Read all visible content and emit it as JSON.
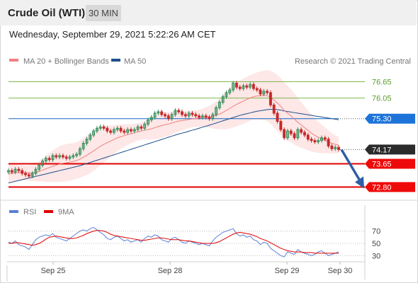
{
  "header": {
    "title": "Crude Oil (WTI)",
    "timeframe": "30 MIN"
  },
  "timestamp": "Wednesday, September 29, 2021 5:22:26 AM CET",
  "legend": {
    "ma20": "MA 20 + Bollinger Bands",
    "ma50": "MA 50",
    "credit": "Research © 2021 Trading Central"
  },
  "rsi_legend": {
    "rsi": "RSI",
    "ma": "9MA"
  },
  "colors": {
    "ma20": "#f08080",
    "ma50": "#1f4e8c",
    "band": "#fde3e3",
    "up": "#2e8b57",
    "down": "#c62828",
    "resistance": "#7fb84a",
    "support": "#e00000",
    "pivot": "#1565c0",
    "rsi": "#5b7fd6",
    "rsi_ma": "#e00000"
  },
  "chart_data": {
    "type": "candlestick",
    "ylim": [
      72.5,
      77.05
    ],
    "x_ticks": [
      "Sep 25",
      "Sep 28",
      "Sep 29",
      "Sep 30"
    ],
    "levels": [
      {
        "label": "76.65",
        "value": 76.65,
        "kind": "resistance"
      },
      {
        "label": "76.05",
        "value": 76.05,
        "kind": "resistance"
      },
      {
        "label": "75.30",
        "value": 75.3,
        "kind": "pivot"
      },
      {
        "label": "74.17",
        "value": 74.17,
        "kind": "last"
      },
      {
        "label": "73.65",
        "value": 73.65,
        "kind": "support"
      },
      {
        "label": "72.80",
        "value": 72.8,
        "kind": "support"
      }
    ],
    "close": [
      73.4,
      73.35,
      73.45,
      73.4,
      73.3,
      73.25,
      73.2,
      73.3,
      73.45,
      73.6,
      73.75,
      73.85,
      73.8,
      73.95,
      73.9,
      73.95,
      73.9,
      73.85,
      73.9,
      73.95,
      74.0,
      74.2,
      74.4,
      74.55,
      74.7,
      74.85,
      74.95,
      75.0,
      74.95,
      74.85,
      74.8,
      74.9,
      74.95,
      74.85,
      74.8,
      74.9,
      74.85,
      74.9,
      75.0,
      74.95,
      75.1,
      75.25,
      75.35,
      75.5,
      75.55,
      75.45,
      75.4,
      75.3,
      75.45,
      75.6,
      75.55,
      75.45,
      75.4,
      75.5,
      75.45,
      75.4,
      75.35,
      75.4,
      75.35,
      75.3,
      75.45,
      75.7,
      75.9,
      76.1,
      76.25,
      76.35,
      76.6,
      76.45,
      76.4,
      76.5,
      76.45,
      76.55,
      76.4,
      76.35,
      76.2,
      76.3,
      76.25,
      75.8,
      75.5,
      75.2,
      74.9,
      74.6,
      74.85,
      74.75,
      74.6,
      74.9,
      74.8,
      74.7,
      74.55,
      74.5,
      74.45,
      74.5,
      74.6,
      74.55,
      74.3,
      74.2,
      74.25,
      74.17
    ],
    "ma20": [
      73.28,
      73.3,
      73.32,
      73.33,
      73.33,
      73.32,
      73.31,
      73.32,
      73.34,
      73.37,
      73.42,
      73.47,
      73.51,
      73.56,
      73.6,
      73.64,
      73.67,
      73.69,
      73.71,
      73.74,
      73.77,
      73.82,
      73.89,
      73.96,
      74.04,
      74.12,
      74.21,
      74.29,
      74.36,
      74.42,
      74.48,
      74.54,
      74.6,
      74.64,
      74.68,
      74.72,
      74.75,
      74.78,
      74.82,
      74.85,
      74.88,
      74.9,
      74.93,
      74.97,
      75.01,
      75.05,
      75.08,
      75.1,
      75.14,
      75.18,
      75.21,
      75.23,
      75.25,
      75.27,
      75.29,
      75.3,
      75.32,
      75.34,
      75.36,
      75.37,
      75.39,
      75.42,
      75.47,
      75.53,
      75.6,
      75.67,
      75.75,
      75.82,
      75.88,
      75.94,
      76.0,
      76.06,
      76.1,
      76.13,
      76.14,
      76.15,
      76.14,
      76.08,
      75.98,
      75.87,
      75.75,
      75.6,
      75.5,
      75.4,
      75.28,
      75.17,
      75.07,
      74.97,
      74.87,
      74.77,
      74.69,
      74.62,
      74.56,
      74.51,
      74.45,
      74.4,
      74.36,
      74.33
    ],
    "ma50": [
      72.95,
      72.98,
      73.01,
      73.04,
      73.07,
      73.1,
      73.13,
      73.16,
      73.19,
      73.22,
      73.25,
      73.28,
      73.31,
      73.34,
      73.37,
      73.4,
      73.43,
      73.46,
      73.49,
      73.52,
      73.55,
      73.58,
      73.62,
      73.66,
      73.7,
      73.74,
      73.78,
      73.82,
      73.86,
      73.9,
      73.94,
      73.98,
      74.02,
      74.06,
      74.1,
      74.14,
      74.18,
      74.22,
      74.26,
      74.3,
      74.34,
      74.38,
      74.42,
      74.46,
      74.5,
      74.54,
      74.58,
      74.62,
      74.66,
      74.7,
      74.74,
      74.77,
      74.8,
      74.84,
      74.88,
      74.91,
      74.95,
      74.99,
      75.02,
      75.06,
      75.1,
      75.14,
      75.18,
      75.22,
      75.26,
      75.3,
      75.34,
      75.38,
      75.42,
      75.45,
      75.48,
      75.51,
      75.54,
      75.57,
      75.59,
      75.61,
      75.63,
      75.64,
      75.64,
      75.63,
      75.61,
      75.58,
      75.56,
      75.54,
      75.52,
      75.5,
      75.48,
      75.46,
      75.44,
      75.42,
      75.4,
      75.38,
      75.36,
      75.34,
      75.32,
      75.3,
      75.28,
      75.26
    ],
    "bb_width": [
      0.35,
      0.33,
      0.3,
      0.28,
      0.27,
      0.27,
      0.28,
      0.3,
      0.33,
      0.37,
      0.42,
      0.48,
      0.53,
      0.58,
      0.62,
      0.65,
      0.67,
      0.68,
      0.68,
      0.67,
      0.67,
      0.68,
      0.7,
      0.72,
      0.73,
      0.73,
      0.72,
      0.7,
      0.66,
      0.62,
      0.57,
      0.52,
      0.48,
      0.44,
      0.41,
      0.38,
      0.35,
      0.33,
      0.32,
      0.32,
      0.33,
      0.36,
      0.39,
      0.42,
      0.44,
      0.45,
      0.45,
      0.44,
      0.42,
      0.4,
      0.38,
      0.35,
      0.33,
      0.31,
      0.3,
      0.3,
      0.31,
      0.33,
      0.36,
      0.4,
      0.45,
      0.5,
      0.56,
      0.62,
      0.68,
      0.73,
      0.77,
      0.8,
      0.82,
      0.83,
      0.83,
      0.83,
      0.84,
      0.86,
      0.88,
      0.9,
      0.93,
      0.97,
      1.0,
      1.02,
      1.03,
      1.02,
      1.0,
      0.97,
      0.93,
      0.88,
      0.83,
      0.78,
      0.73,
      0.68,
      0.62,
      0.57,
      0.52,
      0.47,
      0.42,
      0.37,
      0.33,
      0.3
    ],
    "projection": {
      "from": 74.17,
      "to": 72.8
    },
    "rsi": {
      "ylim": [
        20,
        80
      ],
      "ticks": [
        70,
        50,
        30
      ],
      "rsi_values": [
        52,
        50,
        54,
        48,
        46,
        44,
        40,
        48,
        56,
        60,
        62,
        64,
        62,
        66,
        60,
        58,
        56,
        54,
        58,
        62,
        66,
        70,
        72,
        70,
        74,
        76,
        72,
        68,
        64,
        58,
        56,
        60,
        62,
        58,
        54,
        56,
        52,
        54,
        56,
        52,
        58,
        62,
        60,
        64,
        62,
        56,
        54,
        52,
        58,
        60,
        56,
        52,
        50,
        54,
        52,
        50,
        48,
        50,
        48,
        46,
        54,
        60,
        64,
        68,
        70,
        72,
        74,
        66,
        62,
        64,
        60,
        62,
        56,
        54,
        48,
        52,
        50,
        42,
        38,
        34,
        30,
        28,
        36,
        34,
        32,
        40,
        36,
        34,
        32,
        30,
        32,
        36,
        38,
        34,
        30,
        32,
        34,
        36
      ],
      "ma_values": [
        50,
        50,
        51,
        51,
        50,
        49,
        48,
        47,
        48,
        50,
        53,
        57,
        60,
        61,
        62,
        61,
        60,
        59,
        58,
        58,
        59,
        61,
        63,
        66,
        68,
        70,
        71,
        71,
        70,
        68,
        65,
        63,
        62,
        61,
        60,
        59,
        58,
        57,
        56,
        55,
        55,
        56,
        57,
        58,
        59,
        59,
        58,
        57,
        56,
        56,
        56,
        55,
        54,
        54,
        53,
        52,
        51,
        50,
        50,
        50,
        50,
        51,
        53,
        56,
        59,
        62,
        65,
        67,
        68,
        67,
        66,
        65,
        63,
        61,
        58,
        56,
        54,
        51,
        48,
        45,
        42,
        40,
        38,
        37,
        36,
        36,
        36,
        35,
        35,
        35,
        34,
        34,
        34,
        34,
        34,
        34,
        34,
        34
      ]
    }
  }
}
